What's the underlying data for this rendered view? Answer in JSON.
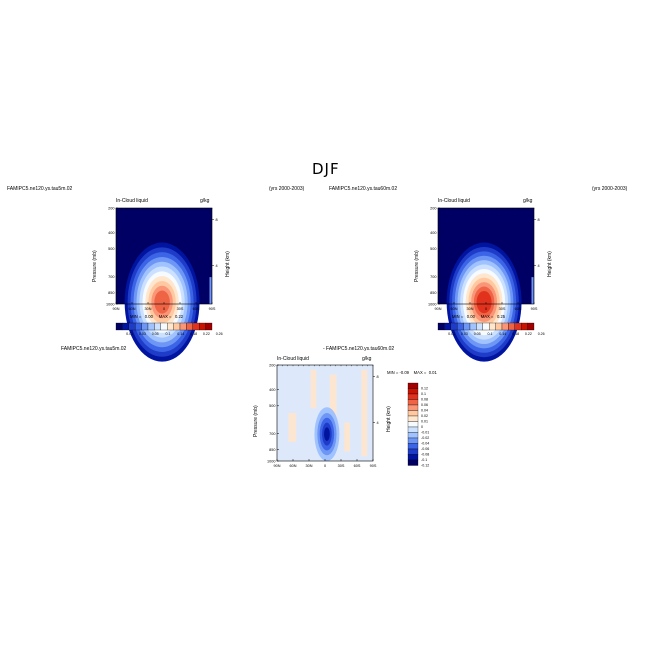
{
  "page": {
    "title": "DJF"
  },
  "chart_data": [
    {
      "type": "heatmap",
      "case": "FAMIPC5.ne120.ys.tau5m.02",
      "years": "(yrs 2000-2003)",
      "field": "In-Cloud liquid",
      "units": "g/kg",
      "ylabel": "Pressure (mb)",
      "ylabel_right": "Height (km)",
      "x_ticks": [
        "90N",
        "60N",
        "30N",
        "0",
        "30S",
        "60S",
        "90S"
      ],
      "y_ticks": [
        200,
        400,
        500,
        700,
        850,
        1000
      ],
      "right_ticks": [
        "8",
        "4"
      ],
      "ylim": [
        200,
        1000
      ],
      "stats": {
        "min_label": "MIN =",
        "min": "0.00",
        "max_label": "MAX =",
        "max": "0.22"
      },
      "colorbar": {
        "labels": [
          "0.01",
          "0.03",
          "0.05",
          "0.1",
          "0.14",
          "0.18",
          "0.22",
          "0.26"
        ],
        "colors": [
          "#000064",
          "#0014a0",
          "#1e3cc8",
          "#3c64e6",
          "#6e96f5",
          "#a0c3ff",
          "#cce1ff",
          "#f5fbff",
          "#ffe6cc",
          "#ffc8a0",
          "#fa9678",
          "#f06446",
          "#e1321e",
          "#c81400",
          "#a00000"
        ]
      },
      "peak": 0.22
    },
    {
      "type": "heatmap",
      "case": "FAMIPC5.ne120.ys.tau60m.02",
      "years": "(yrs 2000-2003)",
      "field": "In-Cloud liquid",
      "units": "g/kg",
      "ylabel": "Pressure (mb)",
      "ylabel_right": "Height (km)",
      "x_ticks": [
        "90N",
        "60N",
        "30N",
        "0",
        "30S",
        "60S",
        "90S"
      ],
      "y_ticks": [
        200,
        400,
        500,
        700,
        850,
        1000
      ],
      "right_ticks": [
        "8",
        "4"
      ],
      "ylim": [
        200,
        1000
      ],
      "stats": {
        "min_label": "MIN =",
        "min": "0.00",
        "max_label": "MAX =",
        "max": "0.25"
      },
      "colorbar": {
        "labels": [
          "0.01",
          "0.03",
          "0.05",
          "0.1",
          "0.14",
          "0.18",
          "0.22",
          "0.26"
        ],
        "colors": [
          "#000064",
          "#0014a0",
          "#1e3cc8",
          "#3c64e6",
          "#6e96f5",
          "#a0c3ff",
          "#cce1ff",
          "#f5fbff",
          "#ffe6cc",
          "#ffc8a0",
          "#fa9678",
          "#f06446",
          "#e1321e",
          "#c81400",
          "#a00000"
        ]
      },
      "peak": 0.25
    },
    {
      "type": "heatmap",
      "case": "FAMIPC5.ne120.ys.tau5m.02",
      "case_diff": "- FAMIPC5.ne120.ys.tau60m.02",
      "field": "In-Cloud liquid",
      "units": "g/kg",
      "ylabel": "Pressure (mb)",
      "ylabel_right": "Height (km)",
      "x_ticks": [
        "90N",
        "60N",
        "30N",
        "0",
        "30S",
        "60S",
        "90S"
      ],
      "y_ticks": [
        200,
        400,
        500,
        700,
        850,
        1000
      ],
      "right_ticks": [
        "8",
        "4"
      ],
      "ylim": [
        200,
        1000
      ],
      "stats": {
        "min_label": "MIN =",
        "min": "-0.09",
        "max_label": "MAX =",
        "max": "0.01"
      },
      "colorbar": {
        "labels": [
          "0.12",
          "0.1",
          "0.08",
          "0.06",
          "0.04",
          "0.02",
          "0.01",
          "0",
          "-0.01",
          "-0.02",
          "-0.04",
          "-0.06",
          "-0.08",
          "-0.1",
          "-0.12"
        ],
        "colors": [
          "#a00000",
          "#c81400",
          "#e1321e",
          "#f06446",
          "#fa9678",
          "#ffc8a0",
          "#ffe6cc",
          "#f5fbff",
          "#cce1ff",
          "#a0c3ff",
          "#6e96f5",
          "#3c64e6",
          "#1e3cc8",
          "#0014a0",
          "#000064"
        ]
      }
    }
  ]
}
